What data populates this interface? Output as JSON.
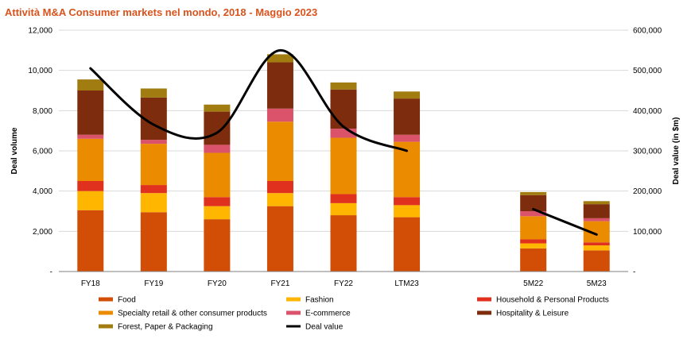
{
  "chart_data": {
    "type": "bar",
    "stacked": true,
    "title": "Attività M&A Consumer markets nel mondo, 2018 - Maggio 2023",
    "categories": [
      "FY18",
      "FY19",
      "FY20",
      "FY21",
      "FY22",
      "LTM23",
      "",
      "5M22",
      "5M23"
    ],
    "ylabel": "Deal volume",
    "y2label": "Deal value (in $m)",
    "ylim": [
      0,
      12000
    ],
    "y2lim": [
      0,
      600000
    ],
    "yticks": [
      "-",
      "2,000",
      "4,000",
      "6,000",
      "8,000",
      "10,000",
      "12,000"
    ],
    "y2ticks": [
      "-",
      "100,000",
      "200,000",
      "300,000",
      "400,000",
      "500,000",
      "600,000"
    ],
    "grid": true,
    "legend_position": "bottom",
    "series": [
      {
        "name": "Food",
        "color": "#D24E06",
        "values": [
          3050,
          2950,
          2600,
          3250,
          2800,
          2700,
          null,
          1150,
          1050
        ]
      },
      {
        "name": "Fashion",
        "color": "#FFB600",
        "values": [
          950,
          950,
          650,
          650,
          600,
          600,
          null,
          250,
          250
        ]
      },
      {
        "name": "Household & Personal Products",
        "color": "#E0301E",
        "values": [
          500,
          400,
          450,
          600,
          450,
          400,
          null,
          200,
          150
        ]
      },
      {
        "name": "Specialty retail & other consumer products",
        "color": "#EB8C00",
        "values": [
          2100,
          2050,
          2200,
          2950,
          2800,
          2750,
          null,
          1150,
          1050
        ]
      },
      {
        "name": "E-commerce",
        "color": "#DB536A",
        "values": [
          200,
          200,
          400,
          650,
          450,
          350,
          null,
          250,
          150
        ]
      },
      {
        "name": "Hospitality & Leisure",
        "color": "#7D2D0D",
        "values": [
          2200,
          2100,
          1650,
          2300,
          1950,
          1800,
          null,
          800,
          700
        ]
      },
      {
        "name": "Forest, Paper & Packaging",
        "color": "#A07C11",
        "values": [
          550,
          450,
          350,
          400,
          350,
          350,
          null,
          150,
          150
        ]
      }
    ],
    "line_series": {
      "name": "Deal value",
      "color": "#000000",
      "axis": "right",
      "values": [
        505000,
        365000,
        345000,
        550000,
        360000,
        300000,
        null,
        155000,
        92000
      ]
    }
  }
}
